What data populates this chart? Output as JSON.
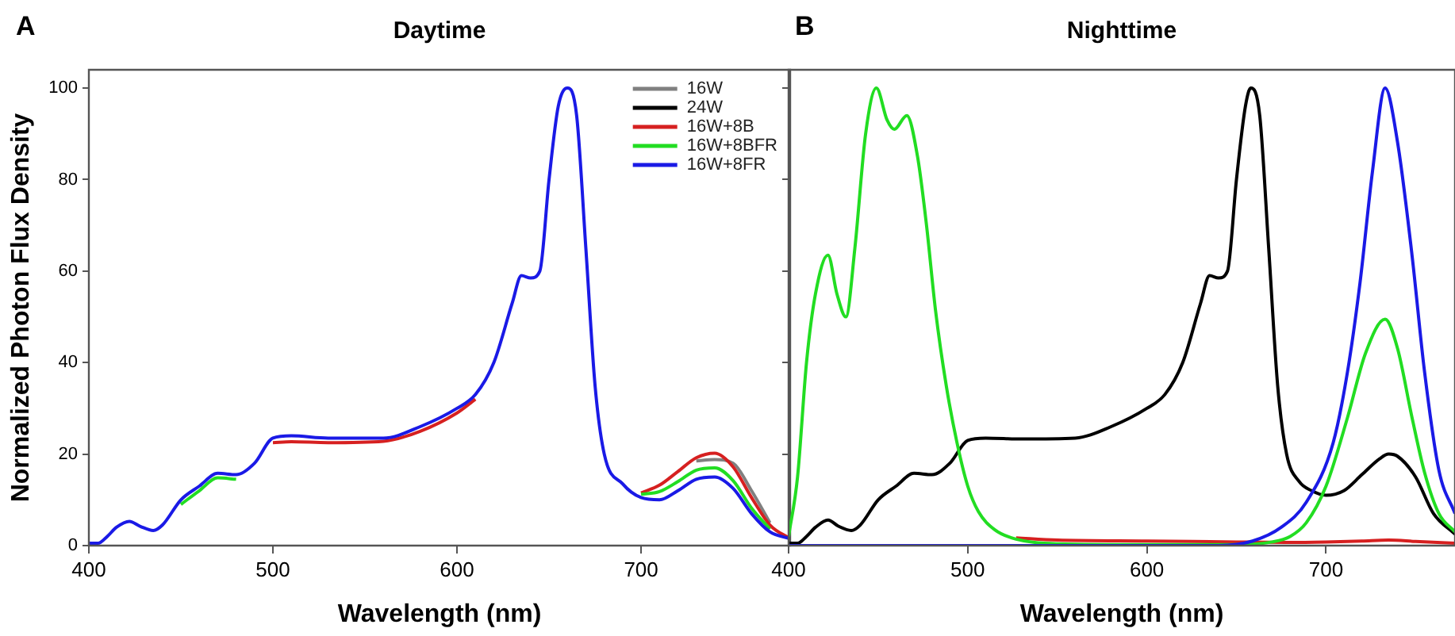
{
  "chart_data": [
    {
      "type": "line",
      "title": "Daytime",
      "xlabel": "Wavelength (nm)",
      "ylabel": "Normalized Photon Flux Density",
      "annotations": [
        "A"
      ],
      "xlim": [
        400,
        781
      ],
      "xticks": [
        400,
        500,
        600,
        700
      ],
      "ylim": [
        0,
        104
      ],
      "yticks": [
        0,
        20,
        40,
        60,
        80,
        100
      ],
      "legend": "top right",
      "grid": false,
      "series": [
        {
          "name": "16W",
          "color": "#808080",
          "x": [
            730,
            740,
            750,
            760,
            770
          ],
          "values": [
            18.5,
            18.8,
            18,
            12,
            5
          ]
        },
        {
          "name": "24W",
          "color": "#000000"
        },
        {
          "name": "16W+8B",
          "color": "#d62020",
          "x": [
            500,
            510,
            530,
            560,
            580,
            600,
            610,
            null,
            700,
            710,
            720,
            730,
            740,
            750,
            760,
            770,
            781
          ],
          "values": [
            22.5,
            22.7,
            22.5,
            22.8,
            25,
            29,
            32,
            null,
            11.5,
            13.2,
            16.2,
            19.2,
            20.2,
            17.2,
            10.5,
            4.5,
            1.5
          ]
        },
        {
          "name": "16W+8BFR",
          "color": "#22dd22",
          "x": [
            450,
            460,
            470,
            480,
            null,
            700,
            710,
            720,
            730,
            740,
            750,
            760,
            770
          ],
          "values": [
            9,
            12,
            14.8,
            14.5,
            null,
            11.2,
            11.8,
            14,
            16.5,
            17,
            14.2,
            8.2,
            3.6
          ]
        },
        {
          "name": "16W+8FR",
          "color": "#1a1ae6",
          "x": [
            400,
            405,
            410,
            415,
            422,
            428,
            435,
            440,
            450,
            460,
            470,
            480,
            490,
            500,
            510,
            530,
            560,
            580,
            600,
            610,
            620,
            630,
            635,
            640,
            645,
            650,
            655,
            660,
            665,
            670,
            675,
            680,
            690,
            700,
            710,
            720,
            730,
            740,
            750,
            760,
            770,
            781
          ],
          "values": [
            0.5,
            0.5,
            2,
            4,
            5.3,
            4.2,
            3.3,
            4.5,
            10,
            13,
            15.8,
            15.5,
            18,
            23.5,
            24,
            23.5,
            23.5,
            26,
            30,
            33,
            40,
            53,
            59,
            58.5,
            60,
            80,
            96,
            100,
            94,
            65,
            35,
            20,
            13.5,
            10.5,
            10,
            12,
            14.5,
            15,
            12.5,
            7,
            3,
            1.5
          ]
        }
      ]
    },
    {
      "type": "line",
      "title": "Nighttime",
      "xlabel": "Wavelength (nm)",
      "annotations": [
        "B"
      ],
      "xlim": [
        400,
        772
      ],
      "xticks": [
        400,
        500,
        600,
        700
      ],
      "ylim": [
        0,
        104
      ],
      "yticks": [
        0,
        20,
        40,
        60,
        80,
        100
      ],
      "tick_labels": "x",
      "grid": false,
      "series": [
        {
          "color": "#000000",
          "x": [
            400,
            405,
            410,
            415,
            422,
            428,
            435,
            440,
            450,
            460,
            470,
            480,
            490,
            500,
            510,
            530,
            560,
            580,
            600,
            610,
            620,
            630,
            635,
            640,
            645,
            650,
            655,
            658,
            663,
            668,
            673,
            678,
            685,
            692,
            700,
            710,
            720,
            730,
            735,
            740,
            750,
            760,
            772
          ],
          "values": [
            0.5,
            0.5,
            2,
            4,
            5.6,
            4.2,
            3.3,
            4.5,
            10,
            13,
            15.8,
            15.5,
            18,
            23,
            23.5,
            23.3,
            23.5,
            26,
            30,
            33,
            40,
            53,
            59,
            58.5,
            60,
            80,
            96,
            100,
            94,
            65,
            35,
            20,
            14,
            12,
            11,
            12,
            15.5,
            19,
            20,
            19.5,
            15,
            7,
            2.5
          ]
        },
        {
          "color": "#d62020",
          "x": [
            527,
            550,
            600,
            650,
            680,
            700,
            720,
            735,
            750,
            772
          ],
          "values": [
            1.7,
            1.2,
            1,
            0.8,
            0.7,
            0.8,
            1,
            1.2,
            0.9,
            0.5
          ]
        },
        {
          "color": "#22dd22",
          "x": [
            400,
            405,
            410,
            415,
            422,
            427,
            432,
            437,
            443,
            449,
            455,
            459,
            466,
            472,
            477,
            482,
            488,
            494,
            500,
            506,
            515,
            527,
            550,
            600,
            650,
            670,
            680,
            689,
            700,
            712,
            722,
            733,
            740,
            748,
            755,
            763,
            772
          ],
          "values": [
            2,
            15,
            40,
            55,
            63.5,
            55,
            50,
            65,
            90,
            100,
            93,
            91,
            94,
            85,
            70,
            51.5,
            35,
            22.5,
            13,
            7.4,
            3.5,
            1.4,
            0.4,
            0.2,
            0.2,
            0.8,
            2,
            5,
            13,
            28,
            42,
            49.5,
            43,
            28,
            16,
            7,
            3
          ]
        },
        {
          "color": "#1a1ae6",
          "x": [
            400,
            500,
            600,
            640,
            659,
            675,
            689,
            704,
            712,
            719,
            726,
            733,
            740,
            748,
            755,
            763,
            772
          ],
          "values": [
            0,
            0,
            0,
            0,
            1,
            4,
            9.5,
            22.5,
            38,
            57.5,
            82,
            100,
            88,
            63.5,
            38,
            16.5,
            7
          ]
        }
      ]
    }
  ]
}
